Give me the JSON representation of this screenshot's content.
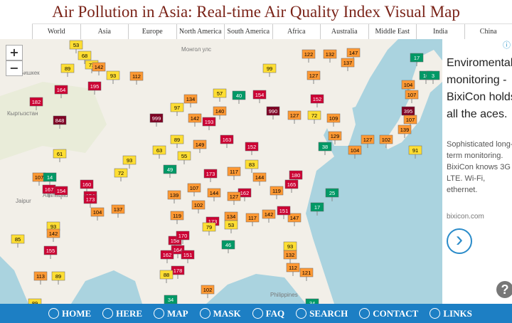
{
  "header": {
    "title": "Air Pollution in Asia: Real-time Air Quality Index Visual Map",
    "tabs": [
      "World",
      "Asia",
      "Europe",
      "North America",
      "South America",
      "Africa",
      "Australia",
      "Middle East",
      "India",
      "China"
    ]
  },
  "map": {
    "zoom_in": "+",
    "zoom_out": "−",
    "places": [
      "Монгол улс",
      "Бишкек",
      "Кыргызстан",
      "Jaipur",
      "Allahabad",
      "Philippines"
    ],
    "markers": [
      53,
      68,
      89,
      72,
      142,
      93,
      112,
      164,
      182,
      195,
      848,
      999,
      61,
      93,
      72,
      63,
      89,
      97,
      99,
      57,
      40,
      154,
      990,
      127,
      72,
      152,
      127,
      122,
      132,
      147,
      137,
      17,
      16,
      3,
      104,
      107,
      395,
      107,
      139,
      102,
      127,
      109,
      129,
      38,
      104,
      91,
      149,
      163,
      134,
      142,
      193,
      140,
      152,
      144,
      55,
      107,
      14,
      167,
      154,
      160,
      154,
      173,
      104,
      137,
      93,
      142,
      85,
      155,
      113,
      89,
      89,
      49,
      173,
      117,
      83,
      180,
      165,
      119,
      25,
      17,
      147,
      117,
      134,
      173,
      79,
      53,
      119,
      158,
      170,
      164,
      162,
      151,
      46,
      93,
      132,
      112,
      121,
      178,
      88,
      102,
      34,
      34,
      144,
      107,
      139,
      102,
      151,
      142,
      162,
      127
    ]
  },
  "ad": {
    "info": "ⓘ",
    "heading": "Enviromental monitoring - BixiCon holds all the aces.",
    "body": "Sophisticated long-term monitoring. BixiCon knows 3G LTE. Wi-Fi, ethernet.",
    "domain": "bixicon.com",
    "next": "›",
    "help": "?"
  },
  "nav": [
    "HOME",
    "HERE",
    "MAP",
    "MASK",
    "FAQ",
    "SEARCH",
    "CONTACT",
    "LINKS"
  ]
}
